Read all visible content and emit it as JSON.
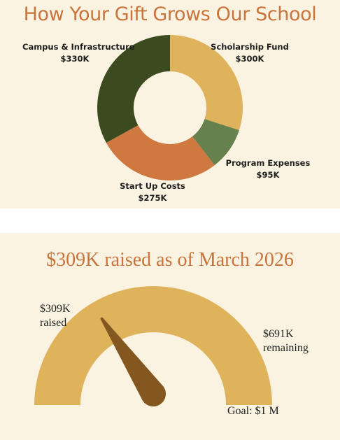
{
  "donut": {
    "title": "How Your Gift Grows Our School",
    "labels": [
      {
        "name": "Scholarship Fund",
        "amount": "$300K"
      },
      {
        "name": "Program Expenses",
        "amount": "$95K"
      },
      {
        "name": "Start Up Costs",
        "amount": "$275K"
      },
      {
        "name": "Campus & Infrastructure",
        "amount": "$330K"
      }
    ]
  },
  "gauge": {
    "title": "$309K raised as of March 2026",
    "raised_amount": "$309K",
    "raised_word": "raised",
    "remaining_amount": "$691K",
    "remaining_word": "remaining",
    "goal_label": "Goal: $1 M"
  },
  "colors": {
    "background": "#faf3e1",
    "accent": "#c8743c",
    "scholarship": "#dfb35c",
    "program": "#66804e",
    "startup": "#cf7940",
    "campus": "#3c4a1f",
    "gauge_fill": "#dfb35c",
    "needle": "#83571f"
  },
  "chart_data": [
    {
      "type": "pie",
      "title": "How Your Gift Grows Our School",
      "categories": [
        "Scholarship Fund",
        "Program Expenses",
        "Start Up Costs",
        "Campus & Infrastructure"
      ],
      "values": [
        300,
        95,
        275,
        330
      ],
      "colors": [
        "#dfb35c",
        "#66804e",
        "#cf7940",
        "#3c4a1f"
      ],
      "donut": true
    },
    {
      "type": "gauge",
      "title": "$309K raised as of March 2026",
      "value": 309,
      "max": 1000,
      "remaining": 691
    }
  ]
}
